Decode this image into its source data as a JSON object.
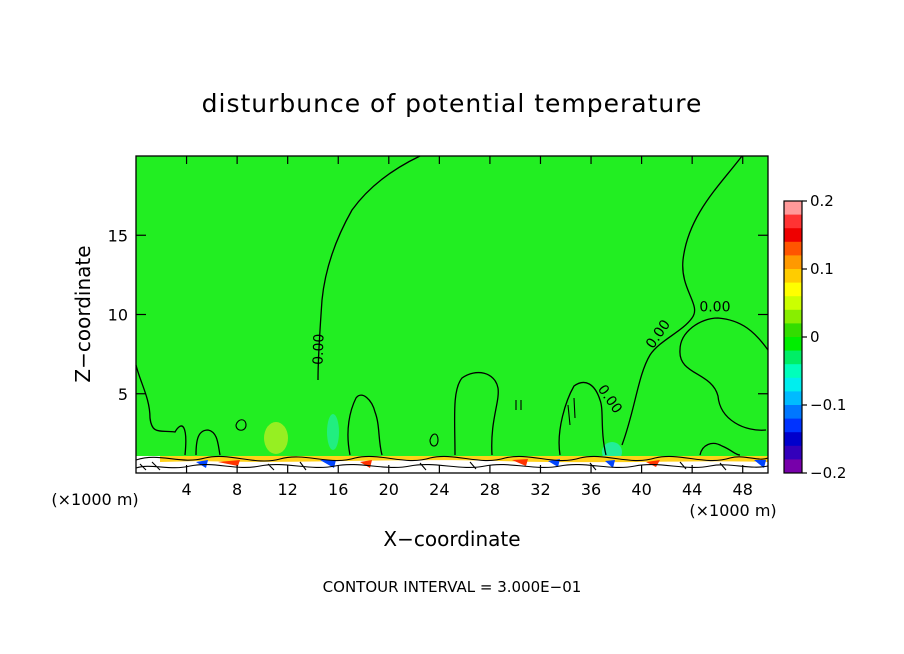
{
  "chart_data": {
    "type": "heatmap",
    "title": "disturbunce of potential temperature",
    "xlabel": "X−coordinate",
    "ylabel": "Z−coordinate",
    "x_unit_left": "(×1000 m)",
    "x_unit_right": "(×1000 m)",
    "xlim": [
      0,
      50
    ],
    "ylim": [
      0,
      20
    ],
    "x_ticks": [
      4,
      8,
      12,
      16,
      20,
      24,
      28,
      32,
      36,
      40,
      44,
      48
    ],
    "y_ticks": [
      5,
      10,
      15
    ],
    "background_value": 0,
    "contour_labels": [
      {
        "text": "0.00",
        "x": 14.8,
        "y": 7.8,
        "rotate": -88
      },
      {
        "text": "0.00",
        "x": 37.2,
        "y": 4.5,
        "rotate": 55
      },
      {
        "text": "0.00",
        "x": 41.6,
        "y": 8.6,
        "rotate": -55
      },
      {
        "text": "0.00",
        "x": 45.8,
        "y": 10.2,
        "rotate": 0
      }
    ],
    "colorbar": {
      "range": [
        -0.2,
        0.2
      ],
      "tick_values": [
        0.2,
        0.1,
        0,
        -0.1,
        -0.2
      ],
      "tick_labels": [
        "0.2",
        "0.1",
        "0",
        "−0.1",
        "−0.2"
      ],
      "colors": [
        "#ff9999",
        "#ff3333",
        "#ee0000",
        "#ff5500",
        "#ff9900",
        "#ffcc00",
        "#ffff00",
        "#ccff00",
        "#88ee00",
        "#33dd00",
        "#00ee00",
        "#00ee66",
        "#00ffbb",
        "#00eeee",
        "#00bbff",
        "#0077ff",
        "#0033ff",
        "#0000cc",
        "#3300bb",
        "#7700aa"
      ]
    },
    "footer": "CONTOUR INTERVAL = 3.000E−01"
  }
}
